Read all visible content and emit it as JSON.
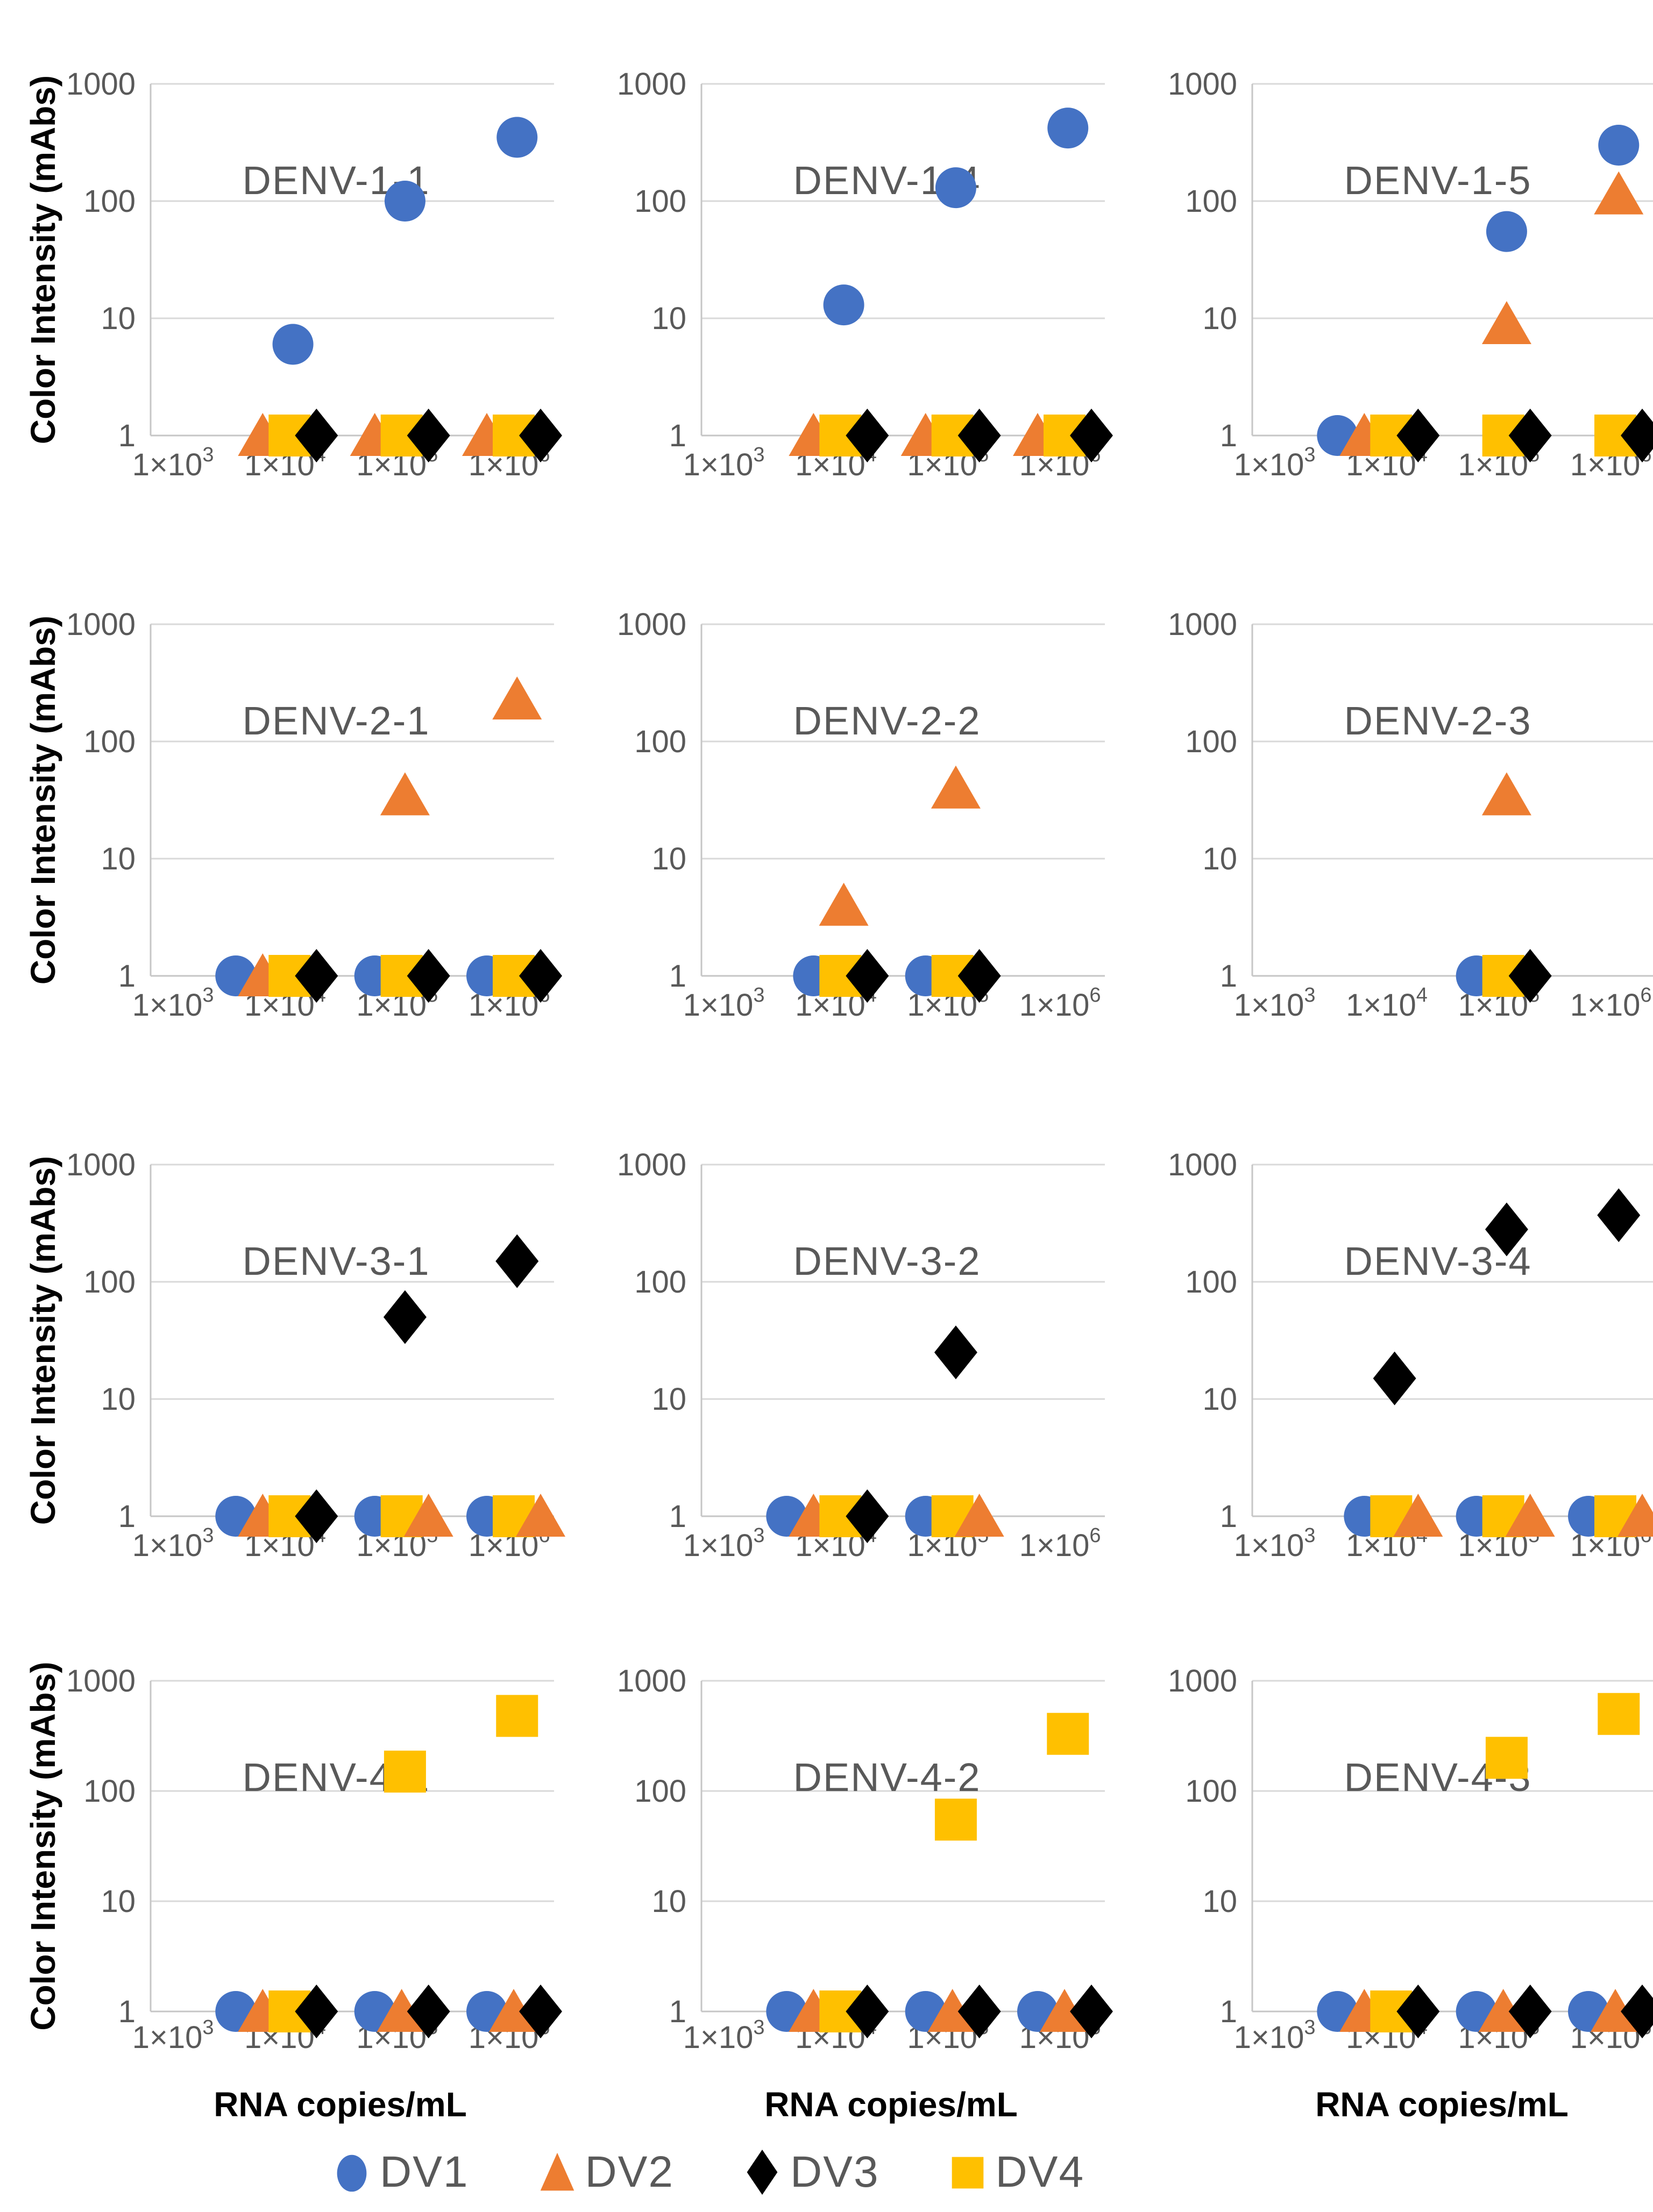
{
  "figure": {
    "y_axis_label": "Color Intensity (mAbs)",
    "x_axis_label": "RNA copies/mL",
    "y_tick_labels": [
      "1",
      "10",
      "100",
      "1000"
    ],
    "y_tick_values": [
      1,
      10,
      100,
      1000
    ],
    "x_tick_labels": [
      {
        "mantissa": "1×10",
        "exponent": "3"
      },
      {
        "mantissa": "1×10",
        "exponent": "4"
      },
      {
        "mantissa": "1×10",
        "exponent": "5"
      },
      {
        "mantissa": "1×10",
        "exponent": "6"
      }
    ],
    "x_tick_values": [
      1000,
      10000,
      100000,
      1000000
    ]
  },
  "colors": {
    "grid_line": "#D9D9D9",
    "axis_line": "#C6C6C6",
    "tick_text": "#595959",
    "title_text": "#595959",
    "axis_title_text": "#000000",
    "background": "#FFFFFF"
  },
  "series_styles": {
    "DV1": {
      "color": "#4472C4",
      "marker": "circle"
    },
    "DV2": {
      "color": "#ED7D31",
      "marker": "triangle"
    },
    "DV3": {
      "color": "#000000",
      "marker": "diamond"
    },
    "DV4": {
      "color": "#FFC000",
      "marker": "square"
    }
  },
  "legend": {
    "items": [
      {
        "series": "DV1",
        "label": "DV1"
      },
      {
        "series": "DV2",
        "label": "DV2"
      },
      {
        "series": "DV3",
        "label": "DV3"
      },
      {
        "series": "DV4",
        "label": "DV4"
      }
    ]
  },
  "chart_data": {
    "type": "scatter",
    "x_scale": "log",
    "y_scale": "log",
    "xlabel": "RNA copies/mL",
    "ylabel": "Color Intensity (mAbs)",
    "xlim": [
      1000,
      1000000
    ],
    "ylim": [
      1,
      1000
    ],
    "grid": "horizontal",
    "legend_position": "bottom",
    "series_names": [
      "DV1",
      "DV2",
      "DV3",
      "DV4"
    ],
    "plots": [
      {
        "title": "DENV-1-1",
        "points": [
          {
            "s": "DV2",
            "x": 10000,
            "y": 1
          },
          {
            "s": "DV4",
            "x": 10000,
            "y": 1
          },
          {
            "s": "DV3",
            "x": 10000,
            "y": 1
          },
          {
            "s": "DV2",
            "x": 100000,
            "y": 1
          },
          {
            "s": "DV4",
            "x": 100000,
            "y": 1
          },
          {
            "s": "DV3",
            "x": 100000,
            "y": 1
          },
          {
            "s": "DV2",
            "x": 1000000,
            "y": 1
          },
          {
            "s": "DV4",
            "x": 1000000,
            "y": 1
          },
          {
            "s": "DV3",
            "x": 1000000,
            "y": 1
          },
          {
            "s": "DV1",
            "x": 10000,
            "y": 6
          },
          {
            "s": "DV1",
            "x": 100000,
            "y": 100
          },
          {
            "s": "DV1",
            "x": 1000000,
            "y": 350
          }
        ]
      },
      {
        "title": "DENV-1-4",
        "points": [
          {
            "s": "DV2",
            "x": 10000,
            "y": 1
          },
          {
            "s": "DV4",
            "x": 10000,
            "y": 1
          },
          {
            "s": "DV3",
            "x": 10000,
            "y": 1
          },
          {
            "s": "DV2",
            "x": 100000,
            "y": 1
          },
          {
            "s": "DV4",
            "x": 100000,
            "y": 1
          },
          {
            "s": "DV3",
            "x": 100000,
            "y": 1
          },
          {
            "s": "DV2",
            "x": 1000000,
            "y": 1
          },
          {
            "s": "DV4",
            "x": 1000000,
            "y": 1
          },
          {
            "s": "DV3",
            "x": 1000000,
            "y": 1
          },
          {
            "s": "DV1",
            "x": 10000,
            "y": 13
          },
          {
            "s": "DV1",
            "x": 100000,
            "y": 130
          },
          {
            "s": "DV1",
            "x": 1000000,
            "y": 420
          }
        ]
      },
      {
        "title": "DENV-1-5",
        "points": [
          {
            "s": "DV1",
            "x": 10000,
            "y": 1
          },
          {
            "s": "DV2",
            "x": 10000,
            "y": 1
          },
          {
            "s": "DV4",
            "x": 10000,
            "y": 1
          },
          {
            "s": "DV3",
            "x": 10000,
            "y": 1
          },
          {
            "s": "DV4",
            "x": 100000,
            "y": 1
          },
          {
            "s": "DV3",
            "x": 100000,
            "y": 1
          },
          {
            "s": "DV4",
            "x": 1000000,
            "y": 1
          },
          {
            "s": "DV3",
            "x": 1000000,
            "y": 1
          },
          {
            "s": "DV1",
            "x": 100000,
            "y": 55
          },
          {
            "s": "DV1",
            "x": 1000000,
            "y": 300
          },
          {
            "s": "DV2",
            "x": 100000,
            "y": 9
          },
          {
            "s": "DV2",
            "x": 1000000,
            "y": 115
          }
        ]
      },
      {
        "title": "DENV-2-1",
        "points": [
          {
            "s": "DV1",
            "x": 10000,
            "y": 1
          },
          {
            "s": "DV2",
            "x": 10000,
            "y": 1
          },
          {
            "s": "DV4",
            "x": 10000,
            "y": 1
          },
          {
            "s": "DV3",
            "x": 10000,
            "y": 1
          },
          {
            "s": "DV1",
            "x": 100000,
            "y": 1
          },
          {
            "s": "DV4",
            "x": 100000,
            "y": 1
          },
          {
            "s": "DV3",
            "x": 100000,
            "y": 1
          },
          {
            "s": "DV1",
            "x": 1000000,
            "y": 1
          },
          {
            "s": "DV4",
            "x": 1000000,
            "y": 1
          },
          {
            "s": "DV3",
            "x": 1000000,
            "y": 1
          },
          {
            "s": "DV2",
            "x": 100000,
            "y": 35
          },
          {
            "s": "DV2",
            "x": 1000000,
            "y": 230
          }
        ]
      },
      {
        "title": "DENV-2-2",
        "points": [
          {
            "s": "DV1",
            "x": 10000,
            "y": 1
          },
          {
            "s": "DV4",
            "x": 10000,
            "y": 1
          },
          {
            "s": "DV3",
            "x": 10000,
            "y": 1
          },
          {
            "s": "DV1",
            "x": 100000,
            "y": 1
          },
          {
            "s": "DV4",
            "x": 100000,
            "y": 1
          },
          {
            "s": "DV3",
            "x": 100000,
            "y": 1
          },
          {
            "s": "DV2",
            "x": 10000,
            "y": 4
          },
          {
            "s": "DV2",
            "x": 100000,
            "y": 40
          }
        ]
      },
      {
        "title": "DENV-2-3",
        "points": [
          {
            "s": "DV1",
            "x": 100000,
            "y": 1
          },
          {
            "s": "DV4",
            "x": 100000,
            "y": 1
          },
          {
            "s": "DV3",
            "x": 100000,
            "y": 1
          },
          {
            "s": "DV2",
            "x": 100000,
            "y": 35
          }
        ]
      },
      {
        "title": "DENV-3-1",
        "points": [
          {
            "s": "DV1",
            "x": 10000,
            "y": 1
          },
          {
            "s": "DV2",
            "x": 10000,
            "y": 1
          },
          {
            "s": "DV4",
            "x": 10000,
            "y": 1
          },
          {
            "s": "DV3",
            "x": 10000,
            "y": 1
          },
          {
            "s": "DV1",
            "x": 100000,
            "y": 1
          },
          {
            "s": "DV4",
            "x": 100000,
            "y": 1
          },
          {
            "s": "DV2",
            "x": 100000,
            "y": 1
          },
          {
            "s": "DV1",
            "x": 1000000,
            "y": 1
          },
          {
            "s": "DV4",
            "x": 1000000,
            "y": 1
          },
          {
            "s": "DV2",
            "x": 1000000,
            "y": 1
          },
          {
            "s": "DV3",
            "x": 100000,
            "y": 50
          },
          {
            "s": "DV3",
            "x": 1000000,
            "y": 150
          }
        ]
      },
      {
        "title": "DENV-3-2",
        "points": [
          {
            "s": "DV1",
            "x": 10000,
            "y": 1
          },
          {
            "s": "DV2",
            "x": 10000,
            "y": 1
          },
          {
            "s": "DV4",
            "x": 10000,
            "y": 1
          },
          {
            "s": "DV3",
            "x": 10000,
            "y": 1
          },
          {
            "s": "DV1",
            "x": 100000,
            "y": 1
          },
          {
            "s": "DV4",
            "x": 100000,
            "y": 1
          },
          {
            "s": "DV2",
            "x": 100000,
            "y": 1
          },
          {
            "s": "DV3",
            "x": 100000,
            "y": 25
          }
        ]
      },
      {
        "title": "DENV-3-4",
        "points": [
          {
            "s": "DV1",
            "x": 10000,
            "y": 1
          },
          {
            "s": "DV4",
            "x": 10000,
            "y": 1
          },
          {
            "s": "DV2",
            "x": 10000,
            "y": 1
          },
          {
            "s": "DV1",
            "x": 100000,
            "y": 1
          },
          {
            "s": "DV4",
            "x": 100000,
            "y": 1
          },
          {
            "s": "DV2",
            "x": 100000,
            "y": 1
          },
          {
            "s": "DV1",
            "x": 1000000,
            "y": 1
          },
          {
            "s": "DV4",
            "x": 1000000,
            "y": 1
          },
          {
            "s": "DV2",
            "x": 1000000,
            "y": 1
          },
          {
            "s": "DV3",
            "x": 10000,
            "y": 15
          },
          {
            "s": "DV3",
            "x": 100000,
            "y": 280
          },
          {
            "s": "DV3",
            "x": 1000000,
            "y": 370
          }
        ]
      },
      {
        "title": "DENV-4-1",
        "points": [
          {
            "s": "DV1",
            "x": 10000,
            "y": 1
          },
          {
            "s": "DV2",
            "x": 10000,
            "y": 1
          },
          {
            "s": "DV4",
            "x": 10000,
            "y": 1
          },
          {
            "s": "DV3",
            "x": 10000,
            "y": 1
          },
          {
            "s": "DV1",
            "x": 100000,
            "y": 1
          },
          {
            "s": "DV2",
            "x": 100000,
            "y": 1
          },
          {
            "s": "DV3",
            "x": 100000,
            "y": 1
          },
          {
            "s": "DV1",
            "x": 1000000,
            "y": 1
          },
          {
            "s": "DV2",
            "x": 1000000,
            "y": 1
          },
          {
            "s": "DV3",
            "x": 1000000,
            "y": 1
          },
          {
            "s": "DV4",
            "x": 100000,
            "y": 150
          },
          {
            "s": "DV4",
            "x": 1000000,
            "y": 480
          }
        ]
      },
      {
        "title": "DENV-4-2",
        "points": [
          {
            "s": "DV1",
            "x": 10000,
            "y": 1
          },
          {
            "s": "DV2",
            "x": 10000,
            "y": 1
          },
          {
            "s": "DV4",
            "x": 10000,
            "y": 1
          },
          {
            "s": "DV3",
            "x": 10000,
            "y": 1
          },
          {
            "s": "DV1",
            "x": 100000,
            "y": 1
          },
          {
            "s": "DV2",
            "x": 100000,
            "y": 1
          },
          {
            "s": "DV3",
            "x": 100000,
            "y": 1
          },
          {
            "s": "DV1",
            "x": 1000000,
            "y": 1
          },
          {
            "s": "DV2",
            "x": 1000000,
            "y": 1
          },
          {
            "s": "DV3",
            "x": 1000000,
            "y": 1
          },
          {
            "s": "DV4",
            "x": 100000,
            "y": 55
          },
          {
            "s": "DV4",
            "x": 1000000,
            "y": 330
          }
        ]
      },
      {
        "title": "DENV-4-3",
        "points": [
          {
            "s": "DV1",
            "x": 10000,
            "y": 1
          },
          {
            "s": "DV2",
            "x": 10000,
            "y": 1
          },
          {
            "s": "DV4",
            "x": 10000,
            "y": 1
          },
          {
            "s": "DV3",
            "x": 10000,
            "y": 1
          },
          {
            "s": "DV1",
            "x": 100000,
            "y": 1
          },
          {
            "s": "DV2",
            "x": 100000,
            "y": 1
          },
          {
            "s": "DV3",
            "x": 100000,
            "y": 1
          },
          {
            "s": "DV1",
            "x": 1000000,
            "y": 1
          },
          {
            "s": "DV2",
            "x": 1000000,
            "y": 1
          },
          {
            "s": "DV3",
            "x": 1000000,
            "y": 1
          },
          {
            "s": "DV4",
            "x": 100000,
            "y": 200
          },
          {
            "s": "DV4",
            "x": 1000000,
            "y": 500
          }
        ]
      }
    ]
  }
}
